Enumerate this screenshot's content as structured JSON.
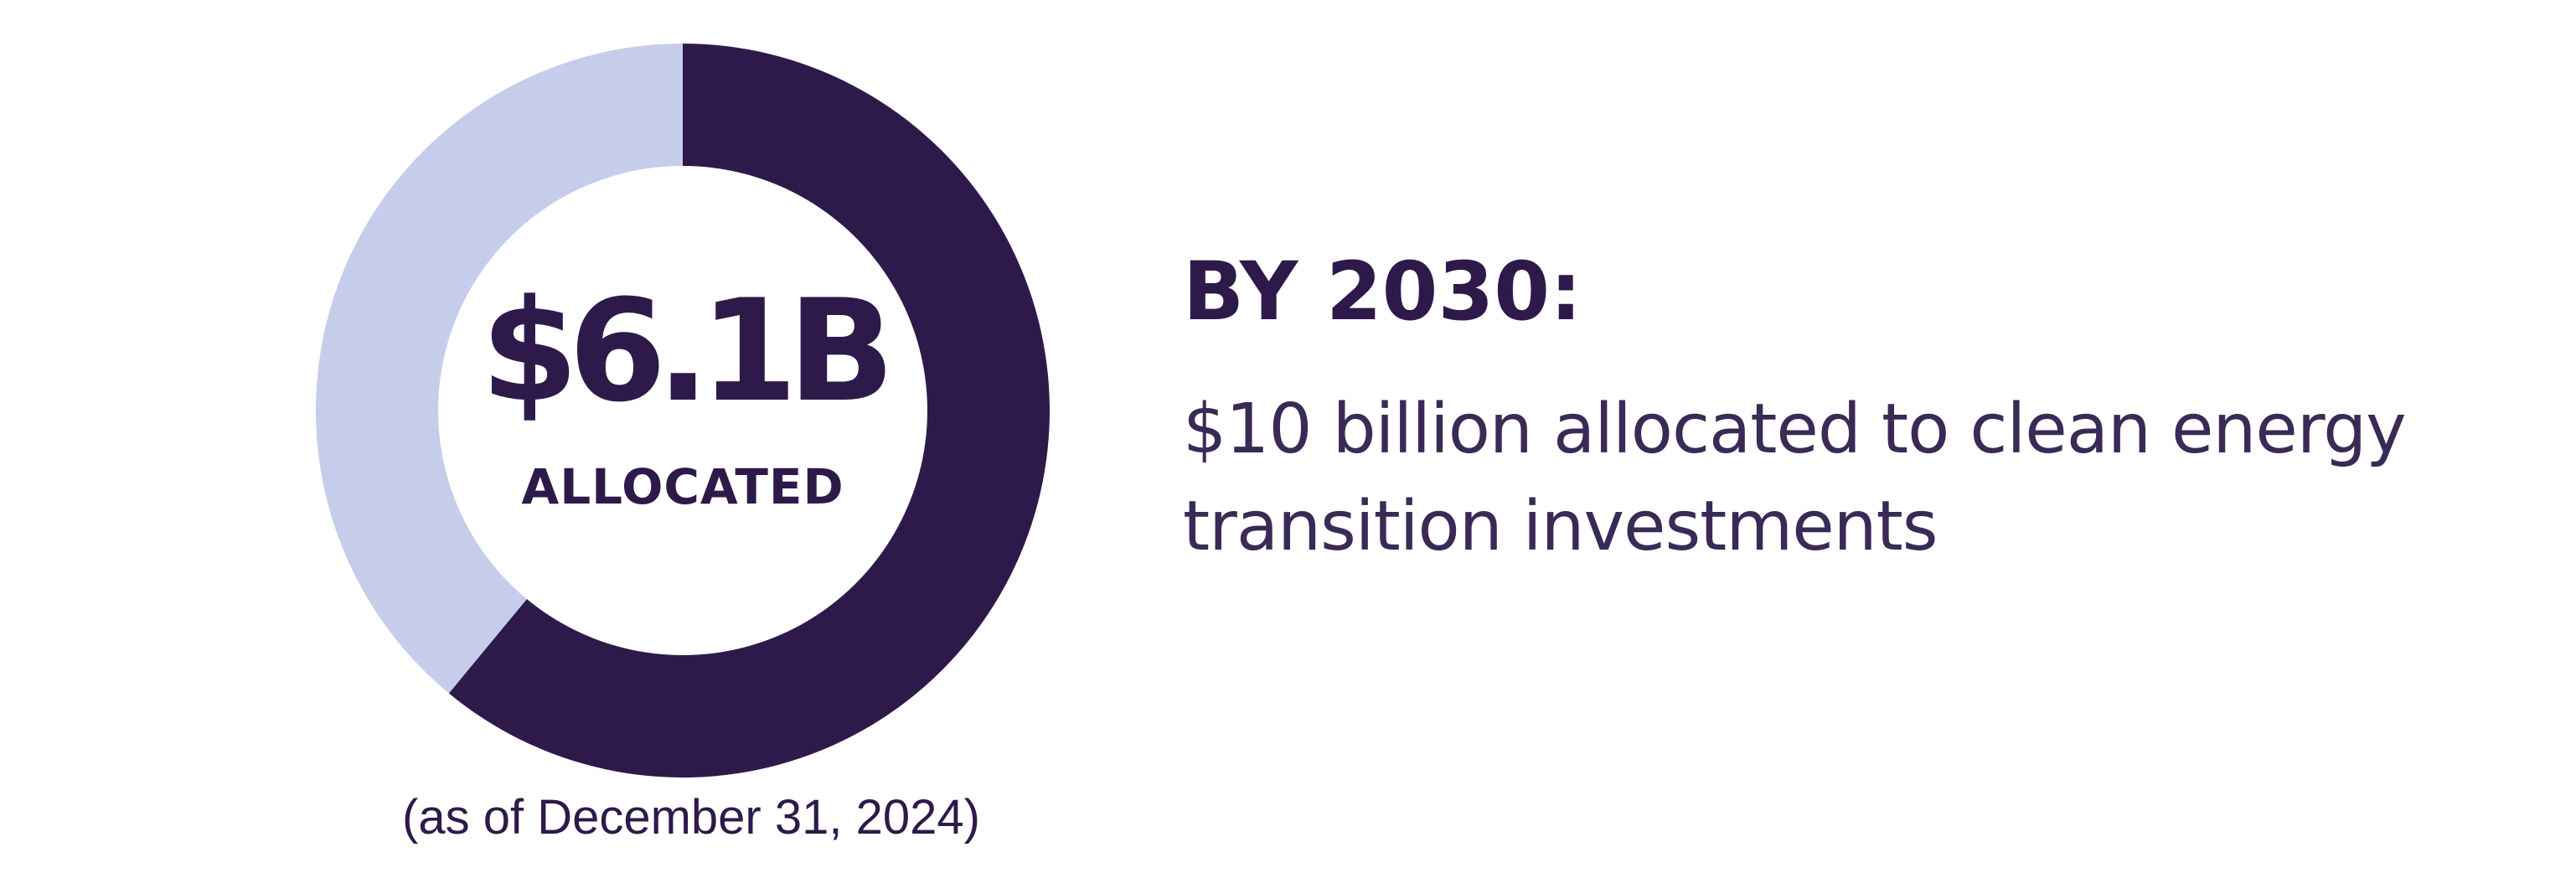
{
  "chart_data": {
    "type": "pie",
    "variant": "donut",
    "slices": [
      {
        "label": "ALLOCATED",
        "value": 6.1,
        "color": "#2e1a4a"
      },
      {
        "value": 3.9,
        "color": "#c6cdea"
      }
    ],
    "total": 10,
    "center_value": "$6.1B",
    "center_label": "ALLOCATED",
    "annotation": "(as of December 31, 2024)"
  },
  "goal": {
    "heading": "BY 2030:",
    "description": "$10 billion allocated to clean energy transition investments"
  }
}
